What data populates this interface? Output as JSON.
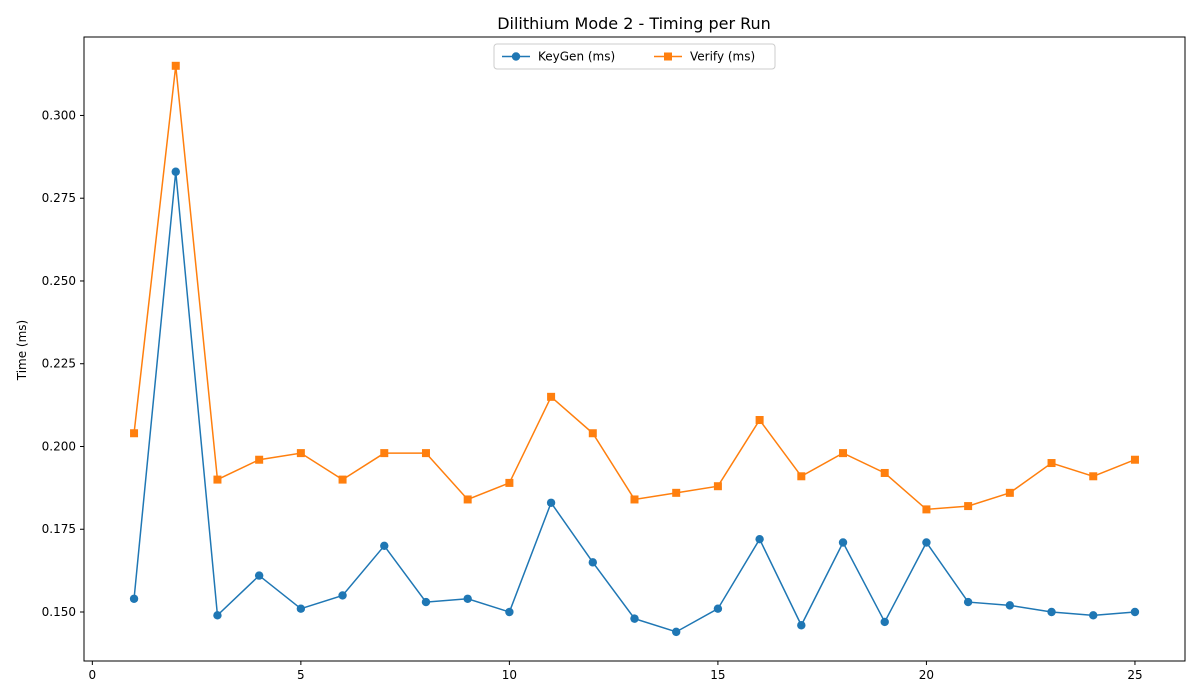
{
  "chart_data": {
    "type": "line",
    "title": "Dilithium Mode 2 - Timing per Run",
    "xlabel": "",
    "ylabel": "Time (ms)",
    "xlim": [
      -0.2,
      26.2
    ],
    "ylim": [
      0.1352,
      0.3237
    ],
    "xticks": [
      0,
      5,
      10,
      15,
      20,
      25
    ],
    "yticks": [
      0.15,
      0.175,
      0.2,
      0.225,
      0.25,
      0.275,
      0.3
    ],
    "ytick_labels": [
      "0.150",
      "0.175",
      "0.200",
      "0.225",
      "0.250",
      "0.275",
      "0.300"
    ],
    "grid": false,
    "legend_position": "upper-center",
    "x": [
      1,
      2,
      3,
      4,
      5,
      6,
      7,
      8,
      9,
      10,
      11,
      12,
      13,
      14,
      15,
      16,
      17,
      18,
      19,
      20,
      21,
      22,
      23,
      24,
      25
    ],
    "series": [
      {
        "name": "KeyGen (ms)",
        "color": "#1f77b4",
        "marker": "circle",
        "values": [
          0.154,
          0.283,
          0.149,
          0.161,
          0.151,
          0.155,
          0.17,
          0.153,
          0.154,
          0.15,
          0.183,
          0.165,
          0.148,
          0.144,
          0.151,
          0.172,
          0.146,
          0.171,
          0.147,
          0.171,
          0.153,
          0.152,
          0.15,
          0.149,
          0.15
        ]
      },
      {
        "name": "Verify (ms)",
        "color": "#ff7f0e",
        "marker": "square",
        "values": [
          0.204,
          0.315,
          0.19,
          0.196,
          0.198,
          0.19,
          0.198,
          0.198,
          0.184,
          0.189,
          0.215,
          0.204,
          0.184,
          0.186,
          0.188,
          0.208,
          0.191,
          0.198,
          0.192,
          0.181,
          0.182,
          0.186,
          0.195,
          0.191,
          0.196
        ]
      }
    ]
  }
}
